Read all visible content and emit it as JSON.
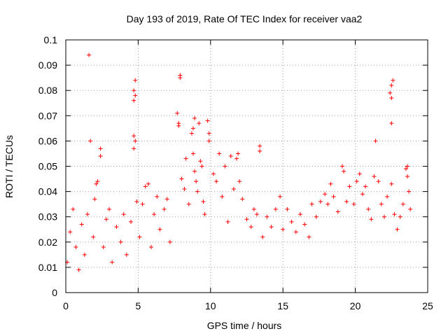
{
  "chart_data": {
    "type": "scatter",
    "title": "Day 193 of 2019, Rate Of TEC Index for receiver vaa2",
    "xlabel": "GPS time / hours",
    "ylabel": "ROTI / TECUs",
    "xlim": [
      0,
      25
    ],
    "ylim": [
      0,
      0.1
    ],
    "xticks": [
      0,
      5,
      10,
      15,
      20,
      25
    ],
    "xtick_labels": [
      "0",
      "5",
      "10",
      "15",
      "20",
      "25"
    ],
    "yticks": [
      0,
      0.01,
      0.02,
      0.03,
      0.04,
      0.05,
      0.06,
      0.07,
      0.08,
      0.09,
      0.1
    ],
    "ytick_labels": [
      "0",
      "0.01",
      "0.02",
      "0.03",
      "0.04",
      "0.05",
      "0.06",
      "0.07",
      "0.08",
      "0.09",
      "0.1"
    ],
    "grid": true,
    "marker": "+",
    "series": [
      {
        "color": "#ff0000",
        "points": [
          [
            0.1,
            0.012
          ],
          [
            0.3,
            0.024
          ],
          [
            0.5,
            0.033
          ],
          [
            0.7,
            0.018
          ],
          [
            0.9,
            0.009
          ],
          [
            1.1,
            0.027
          ],
          [
            1.3,
            0.015
          ],
          [
            1.5,
            0.031
          ],
          [
            1.6,
            0.094
          ],
          [
            1.7,
            0.06
          ],
          [
            1.9,
            0.022
          ],
          [
            2.0,
            0.037
          ],
          [
            2.1,
            0.043
          ],
          [
            2.2,
            0.044
          ],
          [
            2.4,
            0.057
          ],
          [
            2.4,
            0.054
          ],
          [
            2.6,
            0.018
          ],
          [
            2.8,
            0.029
          ],
          [
            3.0,
            0.033
          ],
          [
            3.2,
            0.012
          ],
          [
            3.5,
            0.026
          ],
          [
            3.8,
            0.02
          ],
          [
            4.0,
            0.031
          ],
          [
            4.2,
            0.015
          ],
          [
            4.5,
            0.028
          ],
          [
            4.7,
            0.08
          ],
          [
            4.7,
            0.076
          ],
          [
            4.8,
            0.084
          ],
          [
            4.8,
            0.078
          ],
          [
            4.7,
            0.062
          ],
          [
            4.8,
            0.06
          ],
          [
            4.7,
            0.057
          ],
          [
            4.9,
            0.036
          ],
          [
            5.1,
            0.022
          ],
          [
            5.3,
            0.035
          ],
          [
            5.5,
            0.042
          ],
          [
            5.7,
            0.043
          ],
          [
            5.9,
            0.018
          ],
          [
            6.1,
            0.031
          ],
          [
            6.3,
            0.038
          ],
          [
            6.5,
            0.025
          ],
          [
            6.8,
            0.033
          ],
          [
            7.0,
            0.037
          ],
          [
            7.2,
            0.02
          ],
          [
            7.7,
            0.071
          ],
          [
            7.8,
            0.067
          ],
          [
            7.8,
            0.066
          ],
          [
            7.9,
            0.086
          ],
          [
            7.9,
            0.085
          ],
          [
            8.0,
            0.045
          ],
          [
            8.2,
            0.041
          ],
          [
            8.3,
            0.053
          ],
          [
            8.5,
            0.035
          ],
          [
            8.7,
            0.063
          ],
          [
            8.8,
            0.065
          ],
          [
            8.8,
            0.055
          ],
          [
            8.9,
            0.069
          ],
          [
            8.9,
            0.048
          ],
          [
            9.0,
            0.044
          ],
          [
            9.1,
            0.04
          ],
          [
            9.2,
            0.067
          ],
          [
            9.3,
            0.052
          ],
          [
            9.4,
            0.05
          ],
          [
            9.5,
            0.036
          ],
          [
            9.6,
            0.031
          ],
          [
            9.8,
            0.068
          ],
          [
            9.9,
            0.063
          ],
          [
            9.9,
            0.06
          ],
          [
            10.2,
            0.047
          ],
          [
            10.4,
            0.044
          ],
          [
            10.6,
            0.055
          ],
          [
            10.8,
            0.038
          ],
          [
            11.0,
            0.05
          ],
          [
            11.2,
            0.028
          ],
          [
            11.4,
            0.054
          ],
          [
            11.6,
            0.041
          ],
          [
            11.8,
            0.053
          ],
          [
            11.9,
            0.055
          ],
          [
            12.0,
            0.044
          ],
          [
            12.2,
            0.037
          ],
          [
            12.5,
            0.029
          ],
          [
            12.8,
            0.026
          ],
          [
            13.0,
            0.033
          ],
          [
            13.2,
            0.031
          ],
          [
            13.4,
            0.058
          ],
          [
            13.4,
            0.056
          ],
          [
            13.6,
            0.022
          ],
          [
            13.9,
            0.03
          ],
          [
            14.2,
            0.026
          ],
          [
            14.5,
            0.033
          ],
          [
            14.8,
            0.038
          ],
          [
            15.0,
            0.025
          ],
          [
            15.3,
            0.033
          ],
          [
            15.6,
            0.028
          ],
          [
            15.9,
            0.024
          ],
          [
            16.2,
            0.031
          ],
          [
            16.5,
            0.027
          ],
          [
            16.8,
            0.022
          ],
          [
            17.0,
            0.035
          ],
          [
            17.3,
            0.03
          ],
          [
            17.6,
            0.036
          ],
          [
            17.9,
            0.039
          ],
          [
            18.1,
            0.035
          ],
          [
            18.3,
            0.043
          ],
          [
            18.5,
            0.038
          ],
          [
            18.8,
            0.032
          ],
          [
            19.1,
            0.05
          ],
          [
            19.2,
            0.048
          ],
          [
            19.4,
            0.036
          ],
          [
            19.6,
            0.042
          ],
          [
            19.9,
            0.035
          ],
          [
            20.1,
            0.044
          ],
          [
            20.3,
            0.047
          ],
          [
            20.5,
            0.039
          ],
          [
            20.7,
            0.042
          ],
          [
            20.9,
            0.033
          ],
          [
            21.1,
            0.029
          ],
          [
            21.3,
            0.046
          ],
          [
            21.4,
            0.06
          ],
          [
            21.6,
            0.044
          ],
          [
            21.8,
            0.035
          ],
          [
            22.0,
            0.03
          ],
          [
            22.2,
            0.038
          ],
          [
            22.4,
            0.079
          ],
          [
            22.5,
            0.082
          ],
          [
            22.5,
            0.077
          ],
          [
            22.6,
            0.084
          ],
          [
            22.5,
            0.067
          ],
          [
            22.5,
            0.043
          ],
          [
            22.7,
            0.031
          ],
          [
            22.9,
            0.025
          ],
          [
            23.1,
            0.03
          ],
          [
            23.3,
            0.035
          ],
          [
            23.5,
            0.049
          ],
          [
            23.6,
            0.05
          ],
          [
            23.6,
            0.046
          ],
          [
            23.7,
            0.04
          ],
          [
            23.8,
            0.033
          ]
        ]
      }
    ]
  }
}
